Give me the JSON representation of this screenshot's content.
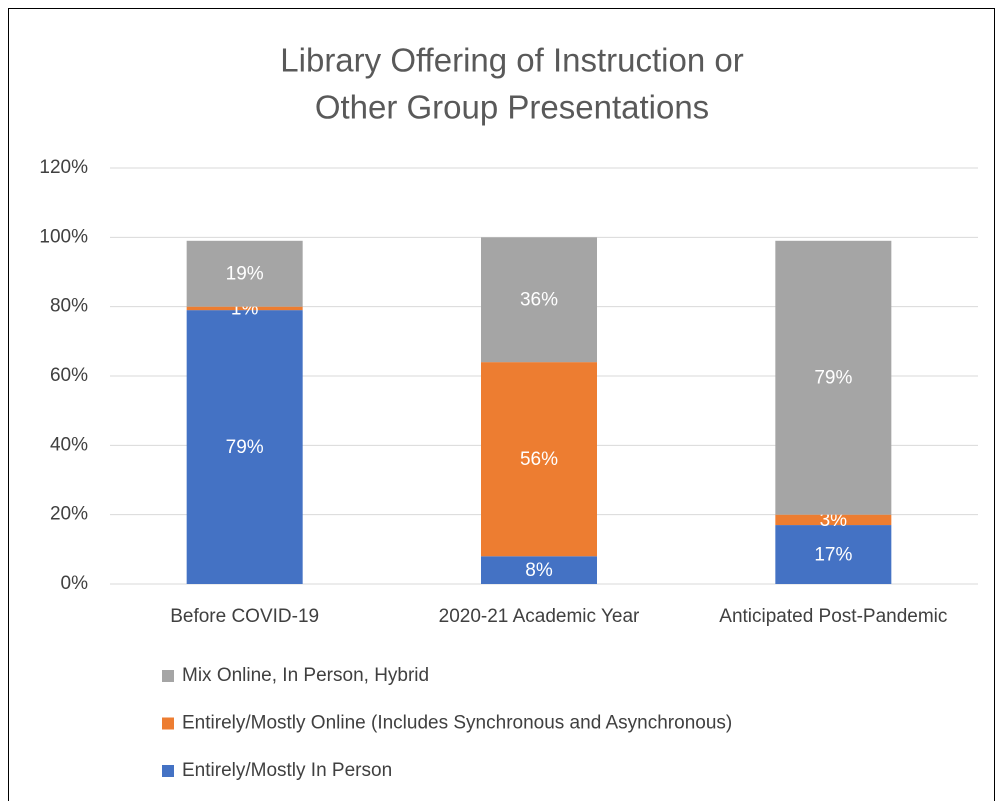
{
  "chart_data": {
    "type": "stacked_bar",
    "title": [
      "Library Offering of Instruction or",
      "Other Group Presentations"
    ],
    "categories": [
      "Before COVID-19",
      "2020-21 Academic Year",
      "Anticipated Post-Pandemic"
    ],
    "series": [
      {
        "name": "Entirely/Mostly In Person",
        "color": "#4472c4",
        "values": [
          79,
          8,
          17
        ],
        "value_labels": [
          "79%",
          "8%",
          "17%"
        ]
      },
      {
        "name": "Entirely/Mostly Online (Includes Synchronous and Asynchronous)",
        "color": "#ed7d31",
        "values": [
          1,
          56,
          3
        ],
        "value_labels": [
          "1%",
          "56%",
          "3%"
        ]
      },
      {
        "name": "Mix Online, In Person, Hybrid",
        "color": "#a5a5a5",
        "values": [
          19,
          36,
          79
        ],
        "value_labels": [
          "19%",
          "36%",
          "79%"
        ]
      }
    ],
    "ylim": [
      0,
      120
    ],
    "yticks": [
      {
        "value": 0,
        "label": "0%"
      },
      {
        "value": 20,
        "label": "20%"
      },
      {
        "value": 40,
        "label": "40%"
      },
      {
        "value": 60,
        "label": "60%"
      },
      {
        "value": 80,
        "label": "80%"
      },
      {
        "value": 100,
        "label": "100%"
      },
      {
        "value": 120,
        "label": "120%"
      }
    ],
    "grid": true,
    "legend": "bottom"
  }
}
